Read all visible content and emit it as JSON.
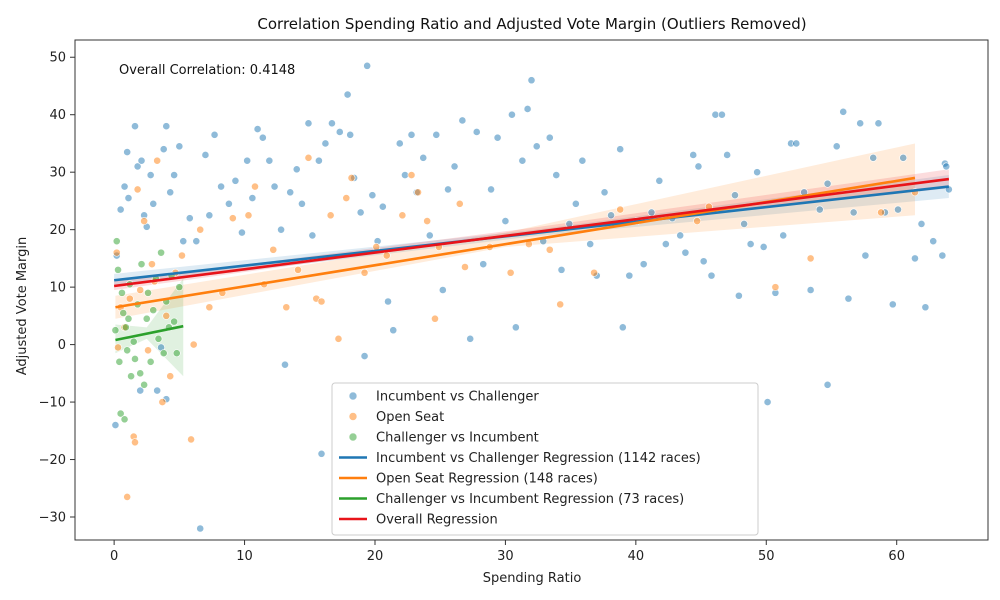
{
  "chart_data": {
    "type": "scatter",
    "title": "Correlation Spending Ratio and Adjusted Vote Margin (Outliers Removed)",
    "xlabel": "Spending Ratio",
    "ylabel": "Adjusted Vote Margin",
    "xlim": [
      -3,
      67
    ],
    "ylim": [
      -34,
      53
    ],
    "xticks": [
      0,
      10,
      20,
      30,
      40,
      50,
      60
    ],
    "yticks": [
      -30,
      -20,
      -10,
      0,
      10,
      20,
      30,
      40,
      50
    ],
    "annotation": "Overall Correlation: 0.4148",
    "legend_position": "lower-center",
    "colors": {
      "incumbent": "#1f77b4",
      "open_seat": "#ff7f0e",
      "challenger": "#2ca02c",
      "overall": "#e8141a"
    },
    "series": [
      {
        "name": "Incumbent vs Challenger",
        "kind": "scatter",
        "color": "#1f77b4",
        "points": [
          [
            0.1,
            -14.0
          ],
          [
            0.2,
            15.5
          ],
          [
            0.5,
            23.5
          ],
          [
            0.8,
            27.5
          ],
          [
            1.0,
            33.5
          ],
          [
            1.1,
            25.5
          ],
          [
            1.6,
            38.0
          ],
          [
            1.8,
            31.0
          ],
          [
            2.0,
            -8.0
          ],
          [
            2.1,
            32.0
          ],
          [
            2.3,
            22.5
          ],
          [
            2.5,
            20.5
          ],
          [
            2.8,
            29.5
          ],
          [
            3.0,
            24.5
          ],
          [
            3.3,
            -8.0
          ],
          [
            3.6,
            -0.5
          ],
          [
            3.8,
            34.0
          ],
          [
            4.0,
            38.0
          ],
          [
            4.0,
            -9.5
          ],
          [
            4.3,
            26.5
          ],
          [
            4.6,
            29.5
          ],
          [
            5.0,
            34.5
          ],
          [
            5.3,
            18.0
          ],
          [
            5.8,
            22.0
          ],
          [
            6.3,
            18.0
          ],
          [
            6.6,
            -32.0
          ],
          [
            7.0,
            33.0
          ],
          [
            7.3,
            22.5
          ],
          [
            7.7,
            36.5
          ],
          [
            8.2,
            27.5
          ],
          [
            8.8,
            24.5
          ],
          [
            9.3,
            28.5
          ],
          [
            9.8,
            19.5
          ],
          [
            10.2,
            32.0
          ],
          [
            10.6,
            25.5
          ],
          [
            11.0,
            37.5
          ],
          [
            11.4,
            36.0
          ],
          [
            11.9,
            32.0
          ],
          [
            12.3,
            27.5
          ],
          [
            12.8,
            20.0
          ],
          [
            13.1,
            -3.5
          ],
          [
            13.5,
            26.5
          ],
          [
            14.0,
            30.5
          ],
          [
            14.4,
            24.5
          ],
          [
            14.9,
            38.5
          ],
          [
            15.2,
            19.0
          ],
          [
            15.7,
            32.0
          ],
          [
            15.9,
            -19.0
          ],
          [
            16.2,
            35.0
          ],
          [
            16.7,
            38.5
          ],
          [
            17.3,
            37.0
          ],
          [
            17.9,
            43.5
          ],
          [
            18.1,
            36.5
          ],
          [
            18.4,
            29.0
          ],
          [
            18.9,
            23.0
          ],
          [
            19.2,
            -2.0
          ],
          [
            19.4,
            48.5
          ],
          [
            19.8,
            26.0
          ],
          [
            20.2,
            18.0
          ],
          [
            20.6,
            24.0
          ],
          [
            21.0,
            7.5
          ],
          [
            21.4,
            2.5
          ],
          [
            21.9,
            35.0
          ],
          [
            22.3,
            29.5
          ],
          [
            22.8,
            36.5
          ],
          [
            23.2,
            26.5
          ],
          [
            23.7,
            32.5
          ],
          [
            24.2,
            19.0
          ],
          [
            24.7,
            36.5
          ],
          [
            25.2,
            9.5
          ],
          [
            25.6,
            27.0
          ],
          [
            26.1,
            31.0
          ],
          [
            26.7,
            39.0
          ],
          [
            27.3,
            1.0
          ],
          [
            27.8,
            37.0
          ],
          [
            28.3,
            14.0
          ],
          [
            28.9,
            27.0
          ],
          [
            29.4,
            36.0
          ],
          [
            30.0,
            21.5
          ],
          [
            30.5,
            40.0
          ],
          [
            30.8,
            3.0
          ],
          [
            31.3,
            32.0
          ],
          [
            31.7,
            41.0
          ],
          [
            32.0,
            46.0
          ],
          [
            32.4,
            34.5
          ],
          [
            32.9,
            18.0
          ],
          [
            33.4,
            36.0
          ],
          [
            33.9,
            29.5
          ],
          [
            34.3,
            13.0
          ],
          [
            34.9,
            21.0
          ],
          [
            35.4,
            24.5
          ],
          [
            35.9,
            32.0
          ],
          [
            36.5,
            17.5
          ],
          [
            37.0,
            12.0
          ],
          [
            37.6,
            26.5
          ],
          [
            38.1,
            22.5
          ],
          [
            38.8,
            34.0
          ],
          [
            39.0,
            3.0
          ],
          [
            39.5,
            12.0
          ],
          [
            40.1,
            21.5
          ],
          [
            40.6,
            14.0
          ],
          [
            41.2,
            23.0
          ],
          [
            41.8,
            28.5
          ],
          [
            42.3,
            17.5
          ],
          [
            42.8,
            22.0
          ],
          [
            43.4,
            19.0
          ],
          [
            43.8,
            16.0
          ],
          [
            44.4,
            33.0
          ],
          [
            44.8,
            31.0
          ],
          [
            45.2,
            14.5
          ],
          [
            45.8,
            12.0
          ],
          [
            46.1,
            40.0
          ],
          [
            46.6,
            40.0
          ],
          [
            47.0,
            33.0
          ],
          [
            47.6,
            26.0
          ],
          [
            47.9,
            8.5
          ],
          [
            48.3,
            21.0
          ],
          [
            48.8,
            17.5
          ],
          [
            49.3,
            30.0
          ],
          [
            49.8,
            17.0
          ],
          [
            50.1,
            -10.0
          ],
          [
            50.7,
            9.0
          ],
          [
            51.3,
            19.0
          ],
          [
            51.9,
            35.0
          ],
          [
            52.3,
            35.0
          ],
          [
            52.9,
            26.5
          ],
          [
            53.4,
            9.5
          ],
          [
            54.1,
            23.5
          ],
          [
            54.7,
            28.0
          ],
          [
            54.7,
            -7.0
          ],
          [
            55.4,
            34.5
          ],
          [
            55.9,
            40.5
          ],
          [
            56.3,
            8.0
          ],
          [
            56.7,
            23.0
          ],
          [
            57.2,
            38.5
          ],
          [
            57.6,
            15.5
          ],
          [
            58.2,
            32.5
          ],
          [
            58.6,
            38.5
          ],
          [
            59.1,
            23.0
          ],
          [
            59.7,
            7.0
          ],
          [
            60.1,
            23.5
          ],
          [
            60.5,
            32.5
          ],
          [
            61.4,
            15.0
          ],
          [
            61.9,
            21.0
          ],
          [
            62.2,
            6.5
          ],
          [
            62.8,
            18.0
          ],
          [
            63.5,
            15.5
          ],
          [
            63.7,
            31.5
          ],
          [
            64.0,
            27.0
          ],
          [
            63.8,
            31.0
          ]
        ]
      },
      {
        "name": "Open Seat",
        "kind": "scatter",
        "color": "#ff7f0e",
        "points": [
          [
            0.2,
            16.0
          ],
          [
            0.3,
            -0.5
          ],
          [
            0.5,
            6.5
          ],
          [
            0.8,
            3.0
          ],
          [
            1.0,
            -26.5
          ],
          [
            1.2,
            8.0
          ],
          [
            1.5,
            -16.0
          ],
          [
            1.6,
            -17.0
          ],
          [
            1.8,
            27.0
          ],
          [
            2.0,
            9.5
          ],
          [
            2.3,
            21.5
          ],
          [
            2.6,
            -1.0
          ],
          [
            2.9,
            14.0
          ],
          [
            3.1,
            11.0
          ],
          [
            3.3,
            32.0
          ],
          [
            3.7,
            -10.0
          ],
          [
            4.0,
            5.0
          ],
          [
            4.3,
            -5.5
          ],
          [
            4.7,
            12.5
          ],
          [
            5.2,
            15.5
          ],
          [
            5.9,
            -16.5
          ],
          [
            6.1,
            0.0
          ],
          [
            6.6,
            20.0
          ],
          [
            7.3,
            6.5
          ],
          [
            8.3,
            9.0
          ],
          [
            9.1,
            22.0
          ],
          [
            10.3,
            22.5
          ],
          [
            10.8,
            27.5
          ],
          [
            11.5,
            10.5
          ],
          [
            12.2,
            16.5
          ],
          [
            13.2,
            6.5
          ],
          [
            14.1,
            13.0
          ],
          [
            14.9,
            32.5
          ],
          [
            15.5,
            8.0
          ],
          [
            15.9,
            7.5
          ],
          [
            16.6,
            22.5
          ],
          [
            17.2,
            1.0
          ],
          [
            17.8,
            25.5
          ],
          [
            18.2,
            29.0
          ],
          [
            19.2,
            12.5
          ],
          [
            20.1,
            17.0
          ],
          [
            20.9,
            15.5
          ],
          [
            22.1,
            22.5
          ],
          [
            22.8,
            29.5
          ],
          [
            23.3,
            26.5
          ],
          [
            24.0,
            21.5
          ],
          [
            24.6,
            4.5
          ],
          [
            24.9,
            17.0
          ],
          [
            26.5,
            24.5
          ],
          [
            26.9,
            13.5
          ],
          [
            28.8,
            17.0
          ],
          [
            30.4,
            12.5
          ],
          [
            31.8,
            17.5
          ],
          [
            33.4,
            16.5
          ],
          [
            34.2,
            7.0
          ],
          [
            36.8,
            12.5
          ],
          [
            38.8,
            23.5
          ],
          [
            44.7,
            21.5
          ],
          [
            45.6,
            24.0
          ],
          [
            50.7,
            10.0
          ],
          [
            53.4,
            15.0
          ],
          [
            58.8,
            23.0
          ],
          [
            61.4,
            26.5
          ]
        ]
      },
      {
        "name": "Challenger vs Incumbent",
        "kind": "scatter",
        "color": "#2ca02c",
        "points": [
          [
            0.1,
            2.5
          ],
          [
            0.2,
            18.0
          ],
          [
            0.3,
            13.0
          ],
          [
            0.4,
            -3.0
          ],
          [
            0.5,
            -12.0
          ],
          [
            0.6,
            9.0
          ],
          [
            0.7,
            5.5
          ],
          [
            0.8,
            -13.0
          ],
          [
            0.9,
            3.0
          ],
          [
            1.0,
            -1.0
          ],
          [
            1.1,
            4.5
          ],
          [
            1.2,
            10.5
          ],
          [
            1.3,
            -5.5
          ],
          [
            1.5,
            0.5
          ],
          [
            1.6,
            -2.5
          ],
          [
            1.8,
            7.0
          ],
          [
            2.0,
            -5.0
          ],
          [
            2.1,
            14.0
          ],
          [
            2.3,
            -7.0
          ],
          [
            2.5,
            4.5
          ],
          [
            2.6,
            9.0
          ],
          [
            2.8,
            -3.0
          ],
          [
            3.0,
            6.0
          ],
          [
            3.2,
            11.5
          ],
          [
            3.4,
            1.0
          ],
          [
            3.6,
            16.0
          ],
          [
            3.8,
            -1.5
          ],
          [
            4.0,
            7.5
          ],
          [
            4.2,
            3.0
          ],
          [
            4.4,
            12.0
          ],
          [
            4.6,
            4.0
          ],
          [
            4.8,
            -1.5
          ],
          [
            5.0,
            10.0
          ]
        ]
      }
    ],
    "regressions": [
      {
        "name": "Incumbent vs Challenger Regression (1142 races)",
        "color": "#1f77b4",
        "x": [
          0,
          64
        ],
        "y": [
          11.2,
          27.5
        ],
        "band_lo": [
          [
            0,
            10.1
          ],
          [
            32,
            18.8
          ],
          [
            64,
            25.5
          ]
        ],
        "band_hi": [
          [
            0,
            12.3
          ],
          [
            32,
            19.9
          ],
          [
            64,
            29.5
          ]
        ]
      },
      {
        "name": "Open Seat Regression (148 races)",
        "color": "#ff7f0e",
        "x": [
          0.1,
          61.4
        ],
        "y": [
          6.5,
          29.0
        ],
        "band_lo": [
          [
            0.1,
            4.5
          ],
          [
            30,
            17.0
          ],
          [
            61.4,
            22.5
          ]
        ],
        "band_hi": [
          [
            0.1,
            8.5
          ],
          [
            30,
            19.5
          ],
          [
            61.4,
            35.0
          ]
        ]
      },
      {
        "name": "Challenger vs Incumbent Regression (73 races)",
        "color": "#2ca02c",
        "x": [
          0.1,
          5.3
        ],
        "y": [
          0.8,
          3.2
        ],
        "band_lo": [
          [
            0.1,
            -1.5
          ],
          [
            2.5,
            1.0
          ],
          [
            5.3,
            -5.5
          ]
        ],
        "band_hi": [
          [
            0.1,
            3.5
          ],
          [
            2.5,
            3.0
          ],
          [
            5.3,
            11.5
          ]
        ]
      },
      {
        "name": "Overall Regression",
        "color": "#e8141a",
        "x": [
          0,
          64
        ],
        "y": [
          10.2,
          28.8
        ],
        "band_lo": [
          [
            0,
            9.5
          ],
          [
            32,
            19.5
          ],
          [
            64,
            27.2
          ]
        ],
        "band_hi": [
          [
            0,
            11.0
          ],
          [
            32,
            20.3
          ],
          [
            64,
            30.5
          ]
        ]
      }
    ],
    "legend": [
      {
        "label": "Incumbent vs Challenger",
        "kind": "marker",
        "color": "#1f77b4"
      },
      {
        "label": "Open Seat",
        "kind": "marker",
        "color": "#ff7f0e"
      },
      {
        "label": "Challenger vs Incumbent",
        "kind": "marker",
        "color": "#2ca02c"
      },
      {
        "label": "Incumbent vs Challenger Regression (1142 races)",
        "kind": "line",
        "color": "#1f77b4"
      },
      {
        "label": "Open Seat Regression (148 races)",
        "kind": "line",
        "color": "#ff7f0e"
      },
      {
        "label": "Challenger vs Incumbent Regression (73 races)",
        "kind": "line",
        "color": "#2ca02c"
      },
      {
        "label": "Overall Regression",
        "kind": "line",
        "color": "#e8141a"
      }
    ]
  }
}
